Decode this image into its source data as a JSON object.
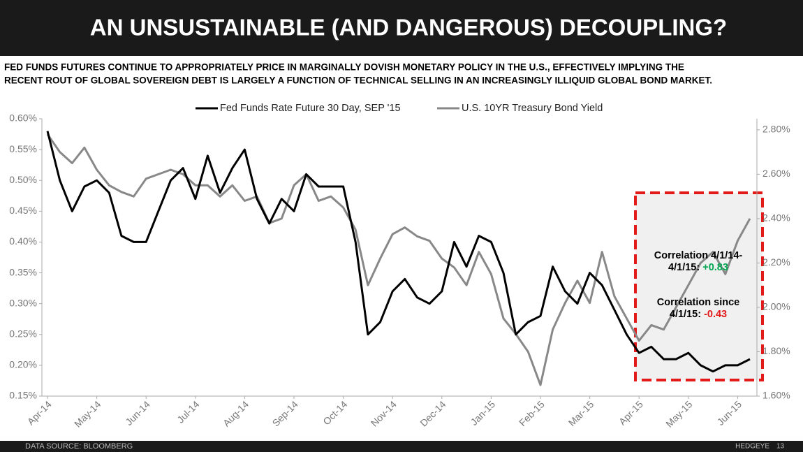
{
  "header": {
    "title": "AN UNSUSTAINABLE (AND DANGEROUS) DECOUPLING?",
    "subtitle": [
      "FED FUNDS FUTURES CONTINUE TO APPROPRIATELY PRICE IN MARGINALLY DOVISH MONETARY POLICY IN THE U.S., EFFECTIVELY IMPLYING THE",
      "RECENT ROUT OF GLOBAL SOVEREIGN DEBT IS LARGELY A FUNCTION OF TECHNICAL SELLING IN AN INCREASINGLY ILLIQUID GLOBAL BOND MARKET."
    ]
  },
  "chart_data": {
    "type": "line",
    "x": [
      0,
      0.25,
      0.5,
      0.75,
      1,
      1.25,
      1.5,
      1.75,
      2,
      2.25,
      2.5,
      2.75,
      3,
      3.25,
      3.5,
      3.75,
      4,
      4.25,
      4.5,
      4.75,
      5,
      5.25,
      5.5,
      5.75,
      6,
      6.25,
      6.5,
      6.75,
      7,
      7.25,
      7.5,
      7.75,
      8,
      8.25,
      8.5,
      8.75,
      9,
      9.25,
      9.5,
      9.75,
      10,
      10.25,
      10.5,
      10.75,
      11,
      11.25,
      11.5,
      11.75,
      12,
      12.25,
      12.5,
      12.75,
      13,
      13.25,
      13.5,
      13.75,
      14,
      14.25
    ],
    "xlim": [
      0,
      14.4
    ],
    "xticks": [
      {
        "value": 0,
        "label": "Apr-14"
      },
      {
        "value": 1,
        "label": "May-14"
      },
      {
        "value": 2,
        "label": "Jun-14"
      },
      {
        "value": 3,
        "label": "Jul-14"
      },
      {
        "value": 4,
        "label": "Aug-14"
      },
      {
        "value": 5,
        "label": "Sep-14"
      },
      {
        "value": 6,
        "label": "Oct-14"
      },
      {
        "value": 7,
        "label": "Nov-14"
      },
      {
        "value": 8,
        "label": "Dec-14"
      },
      {
        "value": 9,
        "label": "Jan-15"
      },
      {
        "value": 10,
        "label": "Feb-15"
      },
      {
        "value": 11,
        "label": "Mar-15"
      },
      {
        "value": 12,
        "label": "Apr-15"
      },
      {
        "value": 13,
        "label": "May-15"
      },
      {
        "value": 14,
        "label": "Jun-15"
      }
    ],
    "ylim": [
      0.15,
      0.6
    ],
    "yticks": [
      {
        "value": 0.15,
        "label": "0.15%"
      },
      {
        "value": 0.2,
        "label": "0.20%"
      },
      {
        "value": 0.25,
        "label": "0.25%"
      },
      {
        "value": 0.3,
        "label": "0.30%"
      },
      {
        "value": 0.35,
        "label": "0.35%"
      },
      {
        "value": 0.4,
        "label": "0.40%"
      },
      {
        "value": 0.45,
        "label": "0.45%"
      },
      {
        "value": 0.5,
        "label": "0.50%"
      },
      {
        "value": 0.55,
        "label": "0.55%"
      },
      {
        "value": 0.6,
        "label": "0.60%"
      }
    ],
    "y2lim": [
      1.6,
      2.85
    ],
    "y2ticks": [
      {
        "value": 1.6,
        "label": "1.60%"
      },
      {
        "value": 1.8,
        "label": "1.80%"
      },
      {
        "value": 2.0,
        "label": "2.00%"
      },
      {
        "value": 2.2,
        "label": "2.20%"
      },
      {
        "value": 2.4,
        "label": "2.40%"
      },
      {
        "value": 2.6,
        "label": "2.60%"
      },
      {
        "value": 2.8,
        "label": "2.80%"
      }
    ],
    "series": [
      {
        "name": "Fed Funds Rate Future 30 Day, SEP '15",
        "color": "#000000",
        "values": [
          0.58,
          0.5,
          0.45,
          0.49,
          0.5,
          0.48,
          0.41,
          0.4,
          0.4,
          0.45,
          0.5,
          0.52,
          0.47,
          0.54,
          0.48,
          0.52,
          0.55,
          0.47,
          0.43,
          0.47,
          0.45,
          0.51,
          0.49,
          0.49,
          0.49,
          0.4,
          0.25,
          0.27,
          0.32,
          0.34,
          0.31,
          0.3,
          0.32,
          0.4,
          0.36,
          0.41,
          0.4,
          0.35,
          0.25,
          0.27,
          0.28,
          0.36,
          0.32,
          0.3,
          0.35,
          0.33,
          0.29,
          0.25,
          0.22,
          0.23,
          0.21,
          0.21,
          0.22,
          0.2,
          0.19,
          0.2,
          0.2,
          0.21
        ]
      },
      {
        "name": "U.S. 10YR Treasury Bond Yield",
        "color": "#888888",
        "axis": "y2",
        "values": [
          2.78,
          2.7,
          2.65,
          2.72,
          2.62,
          2.55,
          2.52,
          2.5,
          2.58,
          2.6,
          2.62,
          2.6,
          2.55,
          2.55,
          2.5,
          2.55,
          2.48,
          2.5,
          2.38,
          2.4,
          2.55,
          2.6,
          2.48,
          2.5,
          2.45,
          2.35,
          2.1,
          2.22,
          2.33,
          2.36,
          2.32,
          2.3,
          2.22,
          2.18,
          2.1,
          2.25,
          2.15,
          1.95,
          1.88,
          1.8,
          1.65,
          1.9,
          2.02,
          2.12,
          2.02,
          2.25,
          2.05,
          1.95,
          1.85,
          1.92,
          1.9,
          2.0,
          2.1,
          2.2,
          2.25,
          2.15,
          2.3,
          2.4
        ]
      }
    ],
    "annotations": [
      {
        "lines": [
          "Correlation 4/1/14-",
          "4/1/15:"
        ],
        "value": "+0.83",
        "color": "#00a651"
      },
      {
        "lines": [
          "Correlation since",
          "4/1/15:"
        ],
        "value": "-0.43",
        "color": "#e21a1a"
      }
    ]
  },
  "footer": {
    "source": "DATA SOURCE: BLOOMBERG",
    "brand": "HEDGEYE",
    "page": 13
  }
}
